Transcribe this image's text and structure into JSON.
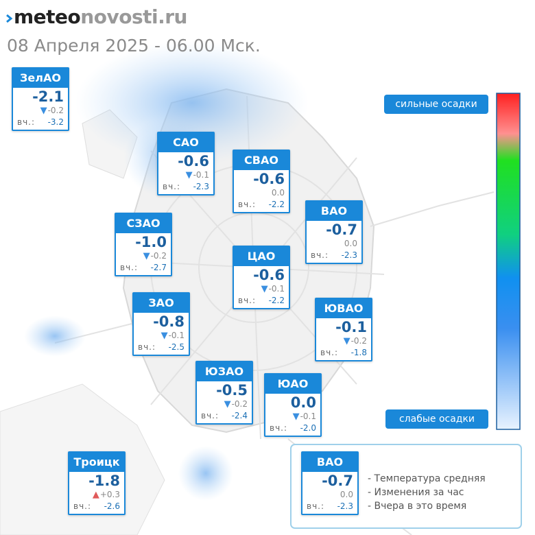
{
  "header": {
    "logo_left": "meteo",
    "logo_right": "novosti.ru",
    "date": "08 Апреля 2025 - 06.00 Мск."
  },
  "labels": {
    "yesterday": "вч.:"
  },
  "districts": [
    {
      "name": "ЗелАО",
      "temp": "-2.1",
      "change": "-0.2",
      "yesterday": "-3.2"
    },
    {
      "name": "САО",
      "temp": "-0.6",
      "change": "-0.1",
      "yesterday": "-2.3"
    },
    {
      "name": "СВАО",
      "temp": "-0.6",
      "change": "0.0",
      "yesterday": "-2.2"
    },
    {
      "name": "ВАО",
      "temp": "-0.7",
      "change": "0.0",
      "yesterday": "-2.3"
    },
    {
      "name": "СЗАО",
      "temp": "-1.0",
      "change": "-0.2",
      "yesterday": "-2.7"
    },
    {
      "name": "ЦАО",
      "temp": "-0.6",
      "change": "-0.1",
      "yesterday": "-2.2"
    },
    {
      "name": "ЗАО",
      "temp": "-0.8",
      "change": "-0.1",
      "yesterday": "-2.5"
    },
    {
      "name": "ЮВАО",
      "temp": "-0.1",
      "change": "-0.2",
      "yesterday": "-1.8"
    },
    {
      "name": "ЮЗАО",
      "temp": "-0.5",
      "change": "-0.2",
      "yesterday": "-2.4"
    },
    {
      "name": "ЮАО",
      "temp": "0.0",
      "change": "-0.1",
      "yesterday": "-2.0"
    },
    {
      "name": "Троицк",
      "temp": "-1.8",
      "change": "+0.3",
      "yesterday": "-2.6"
    }
  ],
  "scale": {
    "top_label": "сильные осадки",
    "bottom_label": "слабые осадки"
  },
  "legend": {
    "sample": {
      "name": "ВАО",
      "temp": "-0.7",
      "change": "0.0",
      "yesterday": "-2.3"
    },
    "items": [
      "- Температура средняя",
      "- Изменения за час",
      "- Вчера в это время"
    ]
  }
}
